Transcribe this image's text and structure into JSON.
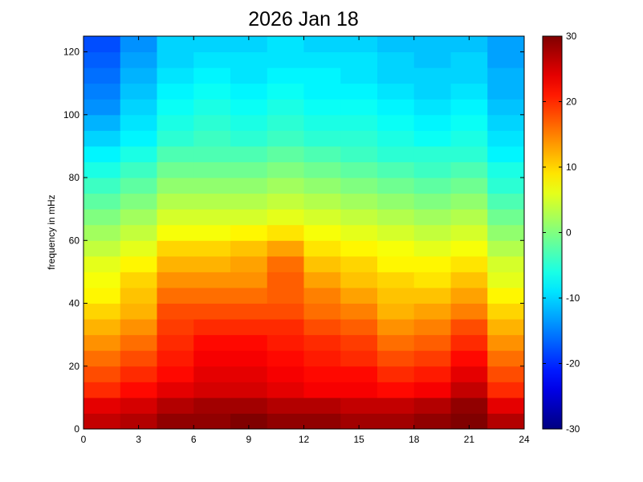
{
  "chart_data": {
    "type": "heatmap",
    "title": "2026 Jan 18",
    "ylabel": "frequency in mHz",
    "colormap": "jet",
    "xbins": [
      0,
      2,
      4,
      6,
      8,
      10,
      12,
      14,
      16,
      18,
      20,
      22,
      24
    ],
    "ybins": [
      0,
      5,
      10,
      15,
      20,
      25,
      30,
      35,
      40,
      45,
      50,
      55,
      60,
      65,
      70,
      75,
      80,
      85,
      90,
      95,
      100,
      105,
      110,
      115,
      120,
      125
    ],
    "values": [
      [
        26,
        27,
        29,
        29,
        30,
        29,
        29,
        28,
        28,
        29,
        30,
        27
      ],
      [
        24,
        25,
        27,
        28,
        28,
        27,
        27,
        26,
        26,
        27,
        29,
        24
      ],
      [
        20,
        22,
        24,
        25,
        25,
        24,
        23,
        23,
        22,
        23,
        26,
        20
      ],
      [
        18,
        20,
        22,
        24,
        24,
        23,
        22,
        22,
        20,
        21,
        24,
        18
      ],
      [
        16,
        18,
        21,
        23,
        23,
        22,
        21,
        20,
        18,
        19,
        22,
        16
      ],
      [
        14,
        16,
        20,
        22,
        22,
        21,
        20,
        19,
        16,
        17,
        20,
        14
      ],
      [
        12,
        14,
        19,
        20,
        20,
        20,
        18,
        17,
        14,
        15,
        18,
        12
      ],
      [
        10,
        12,
        18,
        18,
        18,
        18,
        16,
        15,
        12,
        13,
        15,
        10
      ],
      [
        8,
        11,
        16,
        16,
        16,
        17,
        15,
        13,
        11,
        11,
        13,
        8
      ],
      [
        7,
        10,
        14,
        14,
        14,
        17,
        13,
        11,
        10,
        9,
        11,
        6
      ],
      [
        6,
        8,
        12,
        12,
        13,
        16,
        11,
        10,
        8,
        8,
        9,
        5
      ],
      [
        4,
        6,
        10,
        10,
        11,
        13,
        9,
        8,
        7,
        6,
        7,
        3
      ],
      [
        2,
        4,
        7,
        7,
        8,
        9,
        7,
        6,
        5,
        4,
        5,
        1
      ],
      [
        0,
        2,
        5,
        5,
        5,
        6,
        5,
        4,
        3,
        2,
        3,
        -1
      ],
      [
        -2,
        0,
        3,
        3,
        3,
        4,
        3,
        2,
        1,
        0,
        1,
        -3
      ],
      [
        -4,
        -2,
        1,
        1,
        1,
        2,
        1,
        0,
        -1,
        -2,
        -1,
        -5
      ],
      [
        -6,
        -4,
        -1,
        -1,
        -1,
        0,
        -1,
        -2,
        -3,
        -4,
        -3,
        -6
      ],
      [
        -8,
        -6,
        -3,
        -3,
        -3,
        -2,
        -3,
        -4,
        -5,
        -5,
        -5,
        -8
      ],
      [
        -10,
        -8,
        -5,
        -4,
        -5,
        -4,
        -5,
        -5,
        -6,
        -7,
        -6,
        -9
      ],
      [
        -12,
        -9,
        -6,
        -5,
        -6,
        -5,
        -6,
        -6,
        -7,
        -8,
        -7,
        -10
      ],
      [
        -14,
        -10,
        -7,
        -6,
        -7,
        -6,
        -7,
        -7,
        -8,
        -9,
        -8,
        -11
      ],
      [
        -15,
        -11,
        -8,
        -7,
        -8,
        -7,
        -8,
        -8,
        -9,
        -10,
        -9,
        -12
      ],
      [
        -16,
        -12,
        -9,
        -8,
        -9,
        -8,
        -8,
        -9,
        -10,
        -10,
        -10,
        -12
      ],
      [
        -17,
        -13,
        -10,
        -9,
        -9,
        -9,
        -9,
        -9,
        -10,
        -11,
        -10,
        -13
      ],
      [
        -18,
        -14,
        -10,
        -10,
        -10,
        -9,
        -10,
        -10,
        -11,
        -11,
        -11,
        -13
      ]
    ],
    "xlim": [
      0,
      24
    ],
    "xticks": [
      0,
      3,
      6,
      9,
      12,
      15,
      18,
      21,
      24
    ],
    "ylim": [
      0,
      125
    ],
    "yticks": [
      0,
      20,
      40,
      60,
      80,
      100,
      120
    ],
    "clim": [
      -30,
      30
    ],
    "cticks": [
      -30,
      -20,
      -10,
      0,
      10,
      20,
      30
    ]
  }
}
